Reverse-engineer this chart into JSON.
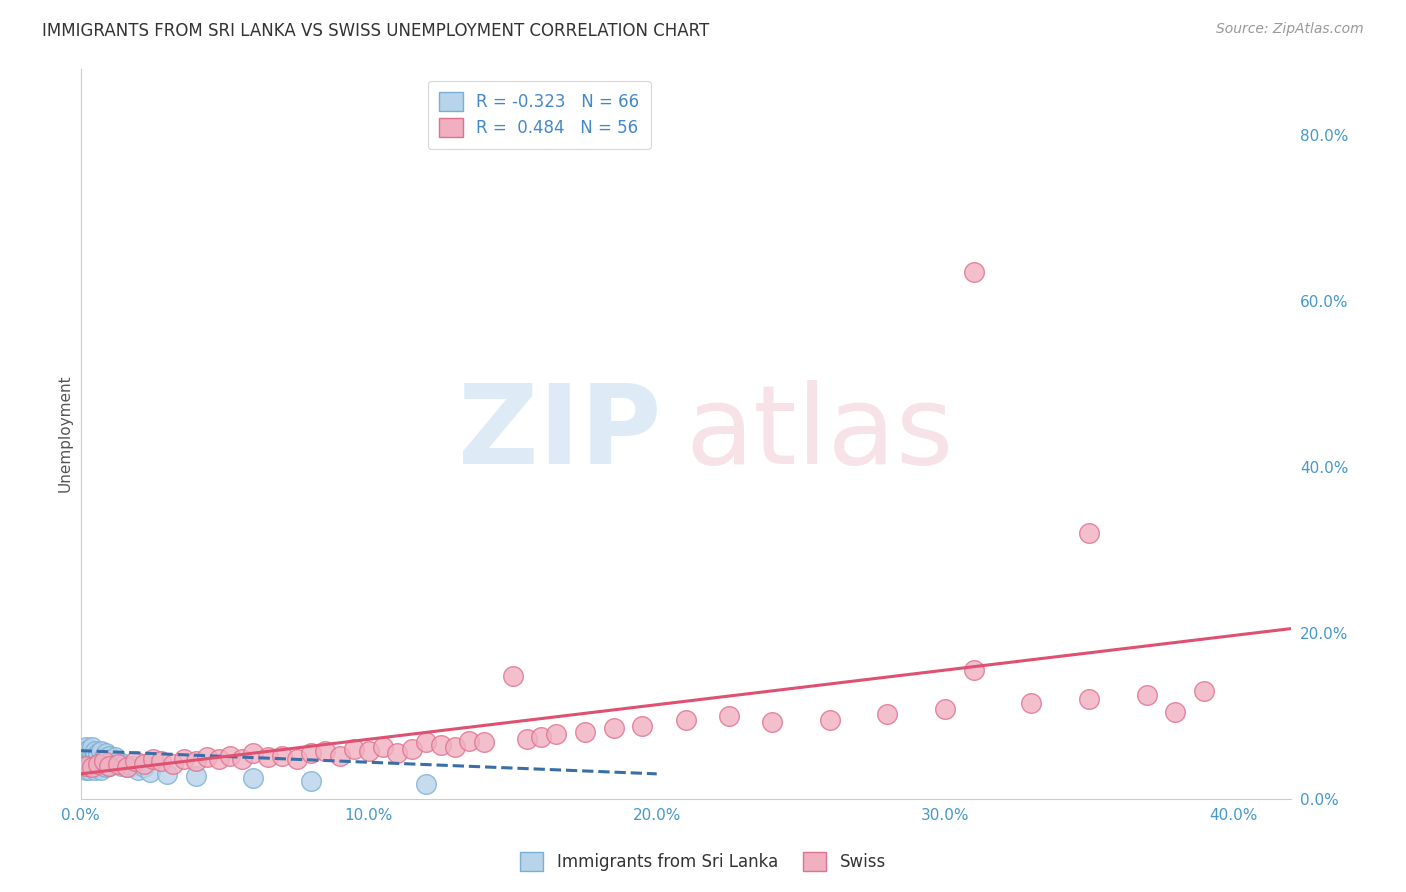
{
  "title": "IMMIGRANTS FROM SRI LANKA VS SWISS UNEMPLOYMENT CORRELATION CHART",
  "source": "Source: ZipAtlas.com",
  "ylabel": "Unemployment",
  "xlim": [
    0.0,
    0.42
  ],
  "ylim": [
    0.0,
    0.88
  ],
  "xticks": [
    0.0,
    0.1,
    0.2,
    0.3,
    0.4
  ],
  "xtick_labels": [
    "0.0%",
    "10.0%",
    "20.0%",
    "30.0%",
    "40.0%"
  ],
  "ytick_labels_right": [
    "0.0%",
    "20.0%",
    "40.0%",
    "60.0%",
    "80.0%"
  ],
  "yticks_right": [
    0.0,
    0.2,
    0.4,
    0.6,
    0.8
  ],
  "legend_R_blue": "-0.323",
  "legend_N_blue": "66",
  "legend_R_pink": "0.484",
  "legend_N_pink": "56",
  "blue_color": "#b8d4ea",
  "blue_edge": "#7aafd4",
  "blue_line_color": "#3a6ea8",
  "pink_color": "#f0b0c0",
  "pink_edge": "#e07090",
  "pink_line_color": "#e05070",
  "blue_scatter_x": [
    0.001,
    0.001,
    0.001,
    0.001,
    0.001,
    0.002,
    0.002,
    0.002,
    0.002,
    0.002,
    0.002,
    0.002,
    0.002,
    0.003,
    0.003,
    0.003,
    0.003,
    0.003,
    0.003,
    0.003,
    0.003,
    0.003,
    0.004,
    0.004,
    0.004,
    0.004,
    0.004,
    0.004,
    0.005,
    0.005,
    0.005,
    0.005,
    0.005,
    0.006,
    0.006,
    0.006,
    0.006,
    0.007,
    0.007,
    0.007,
    0.007,
    0.008,
    0.008,
    0.008,
    0.009,
    0.009,
    0.009,
    0.01,
    0.01,
    0.01,
    0.011,
    0.012,
    0.012,
    0.013,
    0.014,
    0.015,
    0.016,
    0.018,
    0.02,
    0.022,
    0.024,
    0.03,
    0.04,
    0.06,
    0.08,
    0.12
  ],
  "blue_scatter_y": [
    0.042,
    0.038,
    0.045,
    0.05,
    0.055,
    0.038,
    0.042,
    0.048,
    0.052,
    0.058,
    0.035,
    0.062,
    0.04,
    0.038,
    0.042,
    0.048,
    0.055,
    0.05,
    0.045,
    0.06,
    0.035,
    0.04,
    0.042,
    0.038,
    0.05,
    0.055,
    0.045,
    0.062,
    0.048,
    0.052,
    0.058,
    0.04,
    0.035,
    0.045,
    0.05,
    0.038,
    0.055,
    0.042,
    0.048,
    0.058,
    0.035,
    0.05,
    0.045,
    0.04,
    0.048,
    0.055,
    0.038,
    0.052,
    0.045,
    0.04,
    0.048,
    0.042,
    0.05,
    0.045,
    0.04,
    0.042,
    0.038,
    0.04,
    0.035,
    0.038,
    0.032,
    0.03,
    0.028,
    0.025,
    0.022,
    0.018
  ],
  "pink_scatter_x": [
    0.002,
    0.004,
    0.006,
    0.008,
    0.01,
    0.013,
    0.016,
    0.019,
    0.022,
    0.025,
    0.028,
    0.032,
    0.036,
    0.04,
    0.044,
    0.048,
    0.052,
    0.056,
    0.06,
    0.065,
    0.07,
    0.075,
    0.08,
    0.085,
    0.09,
    0.095,
    0.1,
    0.105,
    0.11,
    0.115,
    0.12,
    0.125,
    0.13,
    0.135,
    0.14,
    0.15,
    0.155,
    0.16,
    0.165,
    0.175,
    0.185,
    0.195,
    0.21,
    0.225,
    0.24,
    0.26,
    0.28,
    0.3,
    0.31,
    0.33,
    0.35,
    0.37,
    0.39,
    0.31,
    0.35,
    0.38
  ],
  "pink_scatter_y": [
    0.04,
    0.038,
    0.042,
    0.045,
    0.04,
    0.042,
    0.038,
    0.045,
    0.042,
    0.048,
    0.045,
    0.042,
    0.048,
    0.045,
    0.05,
    0.048,
    0.052,
    0.048,
    0.055,
    0.05,
    0.052,
    0.048,
    0.055,
    0.058,
    0.052,
    0.06,
    0.058,
    0.062,
    0.055,
    0.06,
    0.068,
    0.065,
    0.062,
    0.07,
    0.068,
    0.148,
    0.072,
    0.075,
    0.078,
    0.08,
    0.085,
    0.088,
    0.095,
    0.1,
    0.092,
    0.095,
    0.102,
    0.108,
    0.155,
    0.115,
    0.12,
    0.125,
    0.13,
    0.635,
    0.32,
    0.105
  ],
  "blue_line_x": [
    0.0,
    0.2
  ],
  "blue_line_y_start": 0.058,
  "blue_line_y_end": 0.03,
  "pink_line_x": [
    0.0,
    0.42
  ],
  "pink_line_y_start": 0.03,
  "pink_line_y_end": 0.205
}
